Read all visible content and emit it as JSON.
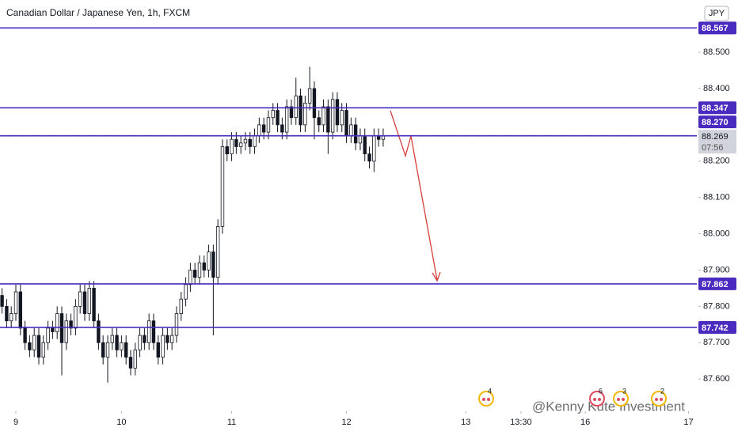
{
  "chart_data": {
    "type": "candlestick",
    "title": "Canadian Dollar / Japanese Yen, 1h, FXCM",
    "currency": "JPY",
    "watermark": "@Kenny Kute Investment",
    "x": [
      -3,
      -2,
      -1,
      0,
      1,
      2,
      3,
      4,
      5,
      6,
      7,
      8,
      9,
      10,
      11,
      12,
      13,
      14,
      15,
      16,
      17,
      18,
      19,
      20,
      21,
      22,
      23,
      24,
      25,
      26,
      27,
      28,
      29,
      30,
      31,
      32,
      33,
      34,
      35,
      36,
      37,
      38,
      39,
      40,
      41,
      42,
      43,
      44,
      45,
      46,
      47,
      48,
      49,
      50,
      51,
      52,
      53,
      54,
      55,
      56,
      57,
      58,
      59,
      60,
      61,
      62,
      63,
      64,
      65,
      66,
      67,
      68,
      69,
      70,
      71,
      72,
      73,
      74,
      75,
      76,
      77,
      78,
      79,
      80
    ],
    "open": [
      87.83,
      87.8,
      87.76,
      87.78,
      87.84,
      87.74,
      87.7,
      87.68,
      87.72,
      87.66,
      87.7,
      87.74,
      87.73,
      87.78,
      87.7,
      87.76,
      87.74,
      87.8,
      87.84,
      87.78,
      87.85,
      87.76,
      87.7,
      87.66,
      87.7,
      87.72,
      87.68,
      87.7,
      87.66,
      87.63,
      87.68,
      87.72,
      87.7,
      87.76,
      87.7,
      87.66,
      87.72,
      87.7,
      87.72,
      87.78,
      87.82,
      87.86,
      87.9,
      87.88,
      87.92,
      87.9,
      87.95,
      87.88,
      88.02,
      88.24,
      88.22,
      88.26,
      88.24,
      88.25,
      88.26,
      88.24,
      88.27,
      88.3,
      88.28,
      88.32,
      88.34,
      88.3,
      88.28,
      88.35,
      88.32,
      88.38,
      88.3,
      88.36,
      88.4,
      88.32,
      88.3,
      88.35,
      88.28,
      88.37,
      88.3,
      88.34,
      88.27,
      88.3,
      88.25,
      88.27,
      88.22,
      88.2,
      88.27,
      88.26
    ],
    "high": [
      87.85,
      87.82,
      87.8,
      87.86,
      87.86,
      87.76,
      87.72,
      87.74,
      87.74,
      87.72,
      87.76,
      87.76,
      87.8,
      87.8,
      87.78,
      87.78,
      87.82,
      87.86,
      87.86,
      87.87,
      87.87,
      87.78,
      87.72,
      87.72,
      87.74,
      87.74,
      87.72,
      87.72,
      87.68,
      87.7,
      87.74,
      87.74,
      87.78,
      87.78,
      87.72,
      87.74,
      87.74,
      87.74,
      87.8,
      87.84,
      87.88,
      87.92,
      87.92,
      87.94,
      87.94,
      87.97,
      87.97,
      88.04,
      88.26,
      88.26,
      88.28,
      88.28,
      88.27,
      88.28,
      88.28,
      88.29,
      88.32,
      88.32,
      88.34,
      88.36,
      88.36,
      88.32,
      88.37,
      88.37,
      88.43,
      88.4,
      88.38,
      88.46,
      88.42,
      88.34,
      88.37,
      88.37,
      88.39,
      88.39,
      88.36,
      88.36,
      88.32,
      88.32,
      88.29,
      88.29,
      88.24,
      88.29,
      88.29,
      88.29
    ],
    "low": [
      87.78,
      87.74,
      87.74,
      87.76,
      87.72,
      87.68,
      87.66,
      87.66,
      87.64,
      87.64,
      87.68,
      87.71,
      87.71,
      87.61,
      87.68,
      87.72,
      87.72,
      87.78,
      87.76,
      87.76,
      87.74,
      87.68,
      87.64,
      87.59,
      87.68,
      87.66,
      87.66,
      87.64,
      87.61,
      87.61,
      87.66,
      87.68,
      87.68,
      87.68,
      87.64,
      87.64,
      87.68,
      87.68,
      87.7,
      87.76,
      87.8,
      87.84,
      87.86,
      87.86,
      87.88,
      87.88,
      87.72,
      87.86,
      88.0,
      88.2,
      88.2,
      88.22,
      88.22,
      88.23,
      88.22,
      88.22,
      88.25,
      88.26,
      88.26,
      88.3,
      88.28,
      88.26,
      88.26,
      88.3,
      88.3,
      88.28,
      88.28,
      88.34,
      88.26,
      88.28,
      88.28,
      88.22,
      88.26,
      88.28,
      88.28,
      88.25,
      88.25,
      88.23,
      88.23,
      88.2,
      88.18,
      88.17,
      88.24,
      88.24
    ],
    "close": [
      87.8,
      87.76,
      87.78,
      87.84,
      87.74,
      87.7,
      87.68,
      87.72,
      87.66,
      87.7,
      87.74,
      87.73,
      87.78,
      87.7,
      87.76,
      87.74,
      87.8,
      87.84,
      87.78,
      87.85,
      87.76,
      87.7,
      87.66,
      87.7,
      87.72,
      87.68,
      87.7,
      87.66,
      87.63,
      87.68,
      87.72,
      87.7,
      87.76,
      87.7,
      87.66,
      87.72,
      87.7,
      87.72,
      87.78,
      87.82,
      87.86,
      87.9,
      87.88,
      87.92,
      87.9,
      87.95,
      87.88,
      88.02,
      88.24,
      88.22,
      88.26,
      88.24,
      88.25,
      88.26,
      88.24,
      88.27,
      88.3,
      88.28,
      88.32,
      88.34,
      88.3,
      88.28,
      88.35,
      88.32,
      88.38,
      88.3,
      88.36,
      88.4,
      88.32,
      88.3,
      88.35,
      88.28,
      88.37,
      88.3,
      88.34,
      88.27,
      88.3,
      88.25,
      88.27,
      88.22,
      88.2,
      88.27,
      88.26,
      88.269
    ],
    "up_color": "#ffffff",
    "down_color": "#131722",
    "xlim": [
      -3.45,
      148.3
    ],
    "ylim": [
      87.511,
      88.644
    ],
    "xticks": [
      {
        "value": 0,
        "label": "9"
      },
      {
        "value": 23,
        "label": "10"
      },
      {
        "value": 47,
        "label": "11"
      },
      {
        "value": 72,
        "label": "12"
      },
      {
        "value": 98,
        "label": "13"
      },
      {
        "value": 110,
        "label": "13:30"
      },
      {
        "value": 124,
        "label": "16"
      },
      {
        "value": 146.5,
        "label": "17"
      }
    ],
    "yticks": [
      {
        "value": 88.5,
        "label": "88.500"
      },
      {
        "value": 88.4,
        "label": "88.400"
      },
      {
        "value": 88.2,
        "label": "88.200"
      },
      {
        "value": 88.1,
        "label": "88.100"
      },
      {
        "value": 88.0,
        "label": "88.000"
      },
      {
        "value": 87.9,
        "label": "87.900"
      },
      {
        "value": 87.8,
        "label": "87.800"
      },
      {
        "value": 87.7,
        "label": "87.700"
      },
      {
        "value": 87.6,
        "label": "87.600"
      }
    ],
    "levels": [
      {
        "value": 88.567,
        "label": "88.567"
      },
      {
        "value": 88.347,
        "label": "88.347"
      },
      {
        "value": 88.27,
        "label": "88.270"
      },
      {
        "value": 87.862,
        "label": "87.862"
      },
      {
        "value": 87.742,
        "label": "87.742"
      }
    ],
    "level_color": "#4a2bbf",
    "last_price": {
      "value": 88.269,
      "label": "88.269",
      "countdown": "07:56"
    },
    "events": [
      "4",
      "6",
      "3",
      "2"
    ]
  }
}
